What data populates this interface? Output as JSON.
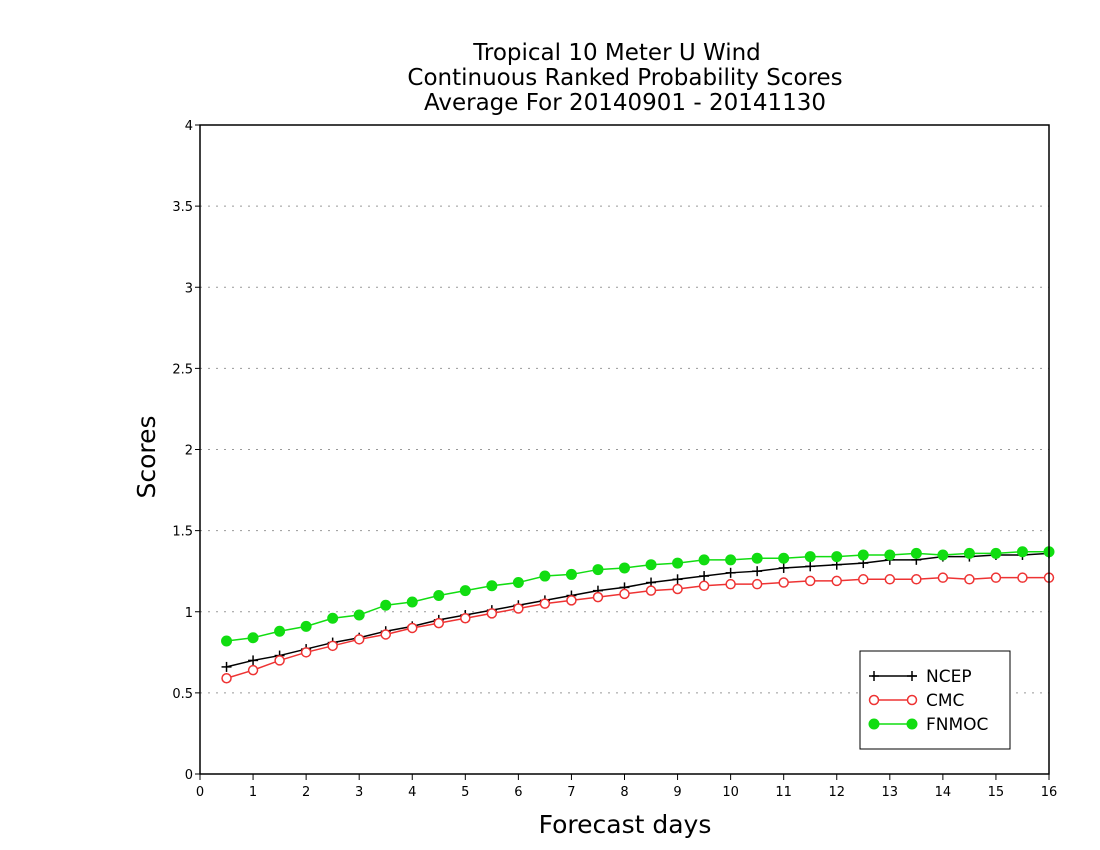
{
  "chart_data": {
    "type": "line",
    "title": [
      "Tropical 10 Meter U Wind",
      "Continuous Ranked Probability Scores",
      "Average For 20140901 - 20141130"
    ],
    "xlabel": "Forecast days",
    "ylabel": "Scores",
    "xlim": [
      0,
      16
    ],
    "ylim": [
      0,
      4
    ],
    "xticks": [
      "0",
      "1",
      "2",
      "3",
      "4",
      "5",
      "6",
      "7",
      "8",
      "9",
      "10",
      "11",
      "12",
      "13",
      "14",
      "15",
      "16"
    ],
    "yticks": [
      "0",
      "0.5",
      "1",
      "1.5",
      "2",
      "2.5",
      "3",
      "3.5",
      "4"
    ],
    "grid": "horizontal dotted",
    "legend_position": "bottom-right",
    "x": [
      0.5,
      1,
      1.5,
      2,
      2.5,
      3,
      3.5,
      4,
      4.5,
      5,
      5.5,
      6,
      6.5,
      7,
      7.5,
      8,
      8.5,
      9,
      9.5,
      10,
      10.5,
      11,
      11.5,
      12,
      12.5,
      13,
      13.5,
      14,
      14.5,
      15,
      15.5,
      16
    ],
    "series": [
      {
        "name": "NCEP",
        "color": "#000000",
        "marker": "plus",
        "values": [
          0.66,
          0.7,
          0.73,
          0.77,
          0.81,
          0.84,
          0.88,
          0.91,
          0.95,
          0.98,
          1.01,
          1.04,
          1.07,
          1.1,
          1.13,
          1.15,
          1.18,
          1.2,
          1.22,
          1.24,
          1.25,
          1.27,
          1.28,
          1.29,
          1.3,
          1.32,
          1.32,
          1.34,
          1.34,
          1.35,
          1.35,
          1.36
        ]
      },
      {
        "name": "CMC",
        "color": "#ee3333",
        "marker": "open-circle",
        "values": [
          0.59,
          0.64,
          0.7,
          0.75,
          0.79,
          0.83,
          0.86,
          0.9,
          0.93,
          0.96,
          0.99,
          1.02,
          1.05,
          1.07,
          1.09,
          1.11,
          1.13,
          1.14,
          1.16,
          1.17,
          1.17,
          1.18,
          1.19,
          1.19,
          1.2,
          1.2,
          1.2,
          1.21,
          1.2,
          1.21,
          1.21,
          1.21
        ]
      },
      {
        "name": "FNMOC",
        "color": "#11dd11",
        "marker": "filled-circle",
        "values": [
          0.82,
          0.84,
          0.88,
          0.91,
          0.96,
          0.98,
          1.04,
          1.06,
          1.1,
          1.13,
          1.16,
          1.18,
          1.22,
          1.23,
          1.26,
          1.27,
          1.29,
          1.3,
          1.32,
          1.32,
          1.33,
          1.33,
          1.34,
          1.34,
          1.35,
          1.35,
          1.36,
          1.35,
          1.36,
          1.36,
          1.37,
          1.37
        ]
      }
    ]
  }
}
